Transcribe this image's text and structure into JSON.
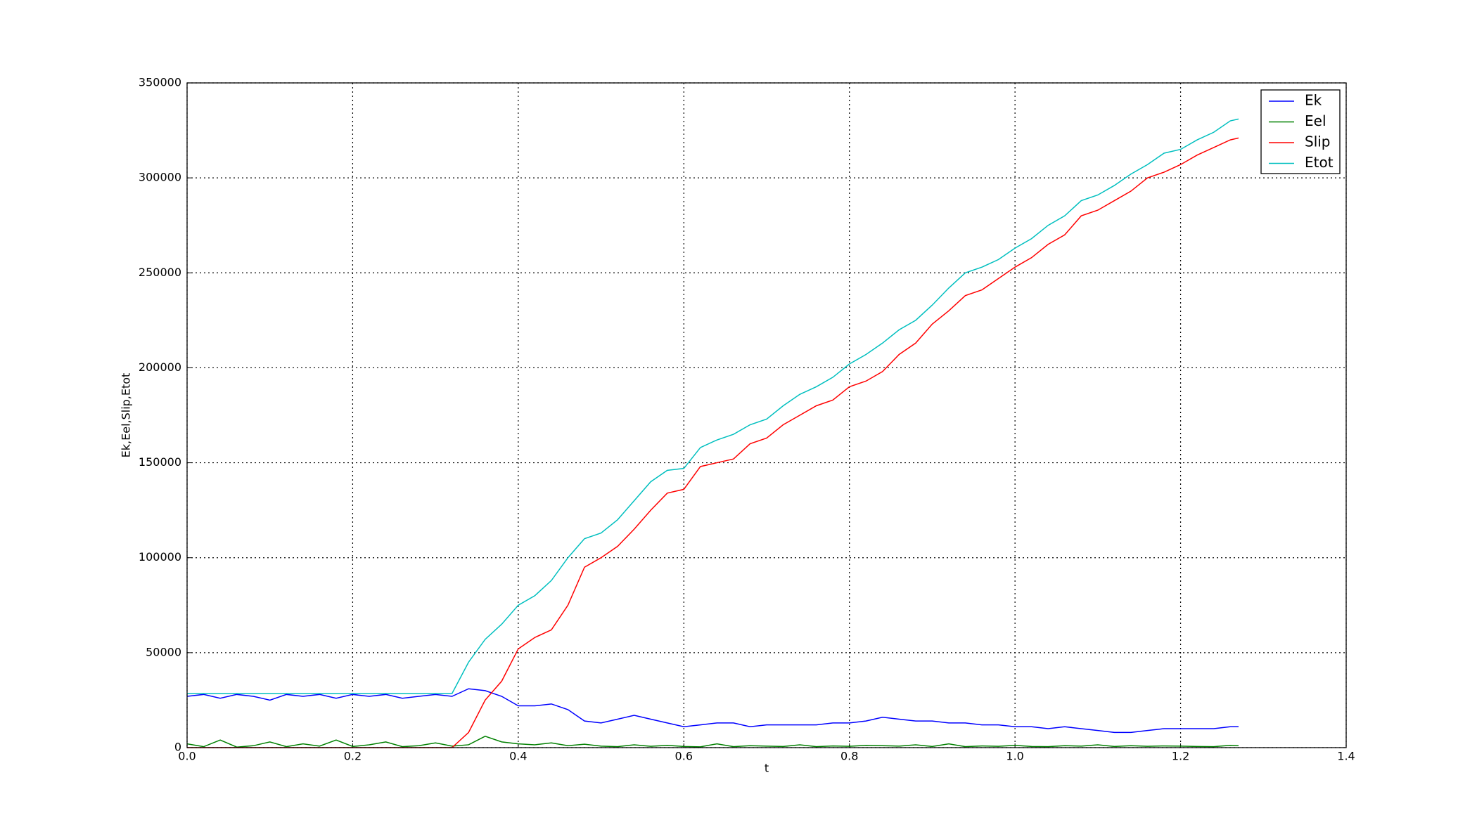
{
  "chart_data": {
    "type": "line",
    "xlabel": "t",
    "ylabel": "Ek,Eel,Slip,Etot",
    "x": [
      0,
      0.02,
      0.04,
      0.06,
      0.08,
      0.1,
      0.12,
      0.14,
      0.16,
      0.18,
      0.2,
      0.22,
      0.24,
      0.26,
      0.28,
      0.3,
      0.32,
      0.34,
      0.36,
      0.38,
      0.4,
      0.42,
      0.44,
      0.46,
      0.48,
      0.5,
      0.52,
      0.54,
      0.56,
      0.58,
      0.6,
      0.62,
      0.64,
      0.66,
      0.68,
      0.7,
      0.72,
      0.74,
      0.76,
      0.78,
      0.8,
      0.82,
      0.84,
      0.86,
      0.88,
      0.9,
      0.92,
      0.94,
      0.96,
      0.98,
      1.0,
      1.02,
      1.04,
      1.06,
      1.08,
      1.1,
      1.12,
      1.14,
      1.16,
      1.18,
      1.2,
      1.22,
      1.24,
      1.26,
      1.27
    ],
    "series": [
      {
        "name": "Ek",
        "color": "#0000ff",
        "values": [
          27000,
          28000,
          26000,
          28000,
          27000,
          25000,
          28000,
          27000,
          28000,
          26000,
          28000,
          27000,
          28000,
          26000,
          27000,
          28000,
          27000,
          31000,
          30000,
          27000,
          22000,
          22000,
          23000,
          20000,
          14000,
          13000,
          15000,
          17000,
          15000,
          13000,
          11000,
          12000,
          13000,
          13000,
          11000,
          12000,
          12000,
          12000,
          12000,
          13000,
          13000,
          14000,
          16000,
          15000,
          14000,
          14000,
          13000,
          13000,
          12000,
          12000,
          11000,
          11000,
          10000,
          11000,
          10000,
          9000,
          8000,
          8000,
          9000,
          10000,
          10000,
          10000,
          10000,
          11000,
          11000
        ]
      },
      {
        "name": "Eel",
        "color": "#008000",
        "values": [
          2000,
          500,
          4000,
          300,
          1000,
          3000,
          500,
          2000,
          800,
          4000,
          600,
          1500,
          3000,
          500,
          1000,
          2500,
          800,
          1500,
          6000,
          3000,
          2000,
          1500,
          2500,
          1000,
          1800,
          800,
          500,
          1500,
          700,
          1200,
          600,
          400,
          2000,
          500,
          1000,
          800,
          600,
          1500,
          500,
          900,
          700,
          1200,
          1000,
          800,
          1500,
          600,
          2000,
          500,
          900,
          700,
          1200,
          600,
          500,
          1000,
          800,
          1500,
          600,
          1000,
          700,
          900,
          800,
          600,
          500,
          1200,
          1000
        ]
      },
      {
        "name": "Slip",
        "color": "#ff0000",
        "values": [
          0,
          0,
          0,
          0,
          0,
          0,
          0,
          0,
          0,
          0,
          0,
          0,
          0,
          0,
          0,
          0,
          0,
          8000,
          25000,
          35000,
          52000,
          58000,
          62000,
          75000,
          95000,
          100000,
          106000,
          115000,
          125000,
          134000,
          136000,
          148000,
          150000,
          152000,
          160000,
          163000,
          170000,
          175000,
          180000,
          183000,
          190000,
          193000,
          198000,
          207000,
          213000,
          223000,
          230000,
          238000,
          241000,
          247000,
          253000,
          258000,
          265000,
          270000,
          280000,
          283000,
          288000,
          293000,
          300000,
          303000,
          307000,
          312000,
          316000,
          320000,
          321000
        ]
      },
      {
        "name": "Etot",
        "color": "#00bfbf",
        "values": [
          28500,
          28500,
          28500,
          28500,
          28500,
          28500,
          28500,
          28500,
          28500,
          28500,
          28500,
          28500,
          28500,
          28500,
          28500,
          28500,
          28500,
          45000,
          57000,
          65000,
          75000,
          80000,
          88000,
          100000,
          110000,
          113000,
          120000,
          130000,
          140000,
          146000,
          147000,
          158000,
          162000,
          165000,
          170000,
          173000,
          180000,
          186000,
          190000,
          195000,
          202000,
          207000,
          213000,
          220000,
          225000,
          233000,
          242000,
          250000,
          253000,
          257000,
          263000,
          268000,
          275000,
          280000,
          288000,
          291000,
          296000,
          302000,
          307000,
          313000,
          315000,
          320000,
          324000,
          330000,
          331000
        ]
      }
    ],
    "xlim": [
      0,
      1.4
    ],
    "xticks": [
      {
        "value": 0,
        "label": "0.0"
      },
      0.2,
      0.4,
      0.6,
      0.8,
      {
        "value": 1,
        "label": "1.0"
      },
      1.2,
      1.4
    ],
    "ylim": [
      0,
      350000
    ],
    "yticks": [
      0,
      50000,
      100000,
      150000,
      200000,
      250000,
      300000,
      350000
    ],
    "grid": true,
    "legend": "upper-right"
  }
}
